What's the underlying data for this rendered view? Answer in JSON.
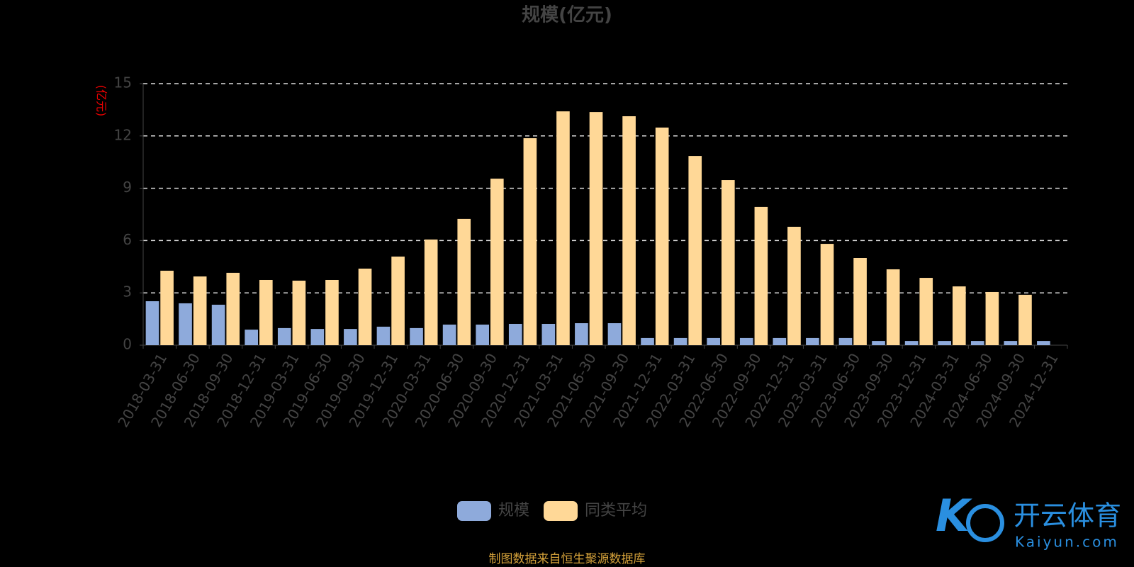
{
  "chart_data": {
    "type": "bar",
    "title": "规模(亿元)",
    "y_label": "(亿元)",
    "categories": [
      "2018-03-31",
      "2018-06-30",
      "2018-09-30",
      "2018-12-31",
      "2019-03-31",
      "2019-06-30",
      "2019-09-30",
      "2019-12-31",
      "2020-03-31",
      "2020-06-30",
      "2020-09-30",
      "2020-12-31",
      "2021-03-31",
      "2021-06-30",
      "2021-09-30",
      "2021-12-31",
      "2022-03-31",
      "2022-06-30",
      "2022-09-30",
      "2022-12-31",
      "2023-03-31",
      "2023-06-30",
      "2023-09-30",
      "2023-12-31",
      "2024-03-31",
      "2024-06-30",
      "2024-09-30",
      "2024-12-31"
    ],
    "series": [
      {
        "name": "规模",
        "color": "#8eaadb",
        "values": [
          2.52,
          2.4,
          2.32,
          0.89,
          0.98,
          0.93,
          0.93,
          1.06,
          0.98,
          1.18,
          1.18,
          1.22,
          1.22,
          1.26,
          1.26,
          0.41,
          0.41,
          0.41,
          0.41,
          0.41,
          0.41,
          0.41,
          0.24,
          0.24,
          0.24,
          0.24,
          0.24,
          0.24
        ]
      },
      {
        "name": "同类平均",
        "color": "#ffd897",
        "values": [
          4.27,
          3.94,
          4.15,
          3.74,
          3.7,
          3.74,
          4.39,
          5.08,
          6.06,
          7.24,
          9.55,
          11.87,
          13.41,
          13.37,
          13.13,
          12.48,
          10.85,
          9.47,
          7.93,
          6.79,
          5.81,
          5.0,
          4.35,
          3.86,
          3.37,
          3.05,
          2.89,
          null
        ]
      }
    ],
    "ylim": [
      0,
      15
    ],
    "yticks": [
      0,
      3,
      6,
      9,
      12,
      15
    ],
    "grid": true,
    "legend": "bottom"
  },
  "source": "制图数据来自恒生聚源数据库",
  "watermark": {
    "brand": "开云体育",
    "site": "Kaiyun.com"
  }
}
